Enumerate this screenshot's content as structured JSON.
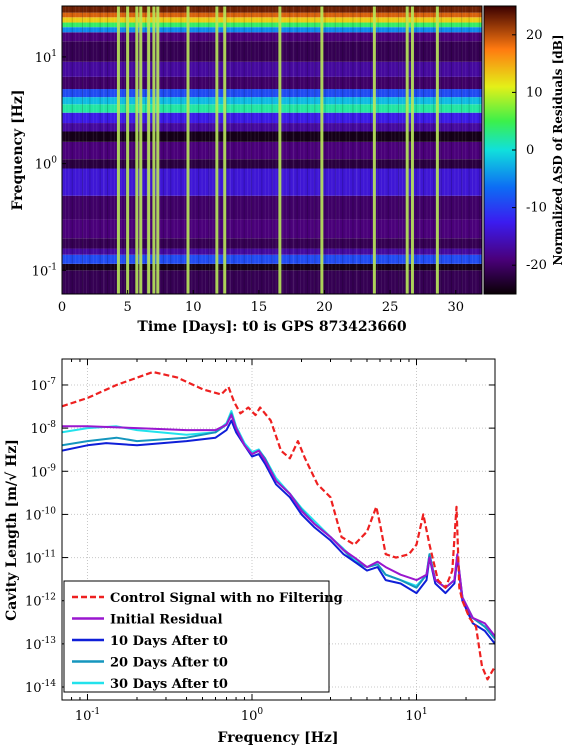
{
  "chart_data": [
    {
      "type": "heatmap",
      "title": "",
      "xlabel": "Time [Days]: t0 is GPS 873423660",
      "ylabel": "Frequency [Hz]",
      "xlim": [
        0,
        32
      ],
      "ylim": [
        0.06,
        30
      ],
      "yscale": "log",
      "x_ticks": [
        "0",
        "5",
        "10",
        "15",
        "20",
        "25",
        "30"
      ],
      "x_tick_values": [
        0,
        5,
        10,
        15,
        20,
        25,
        30
      ],
      "y_ticks": [
        {
          "base": "10",
          "exp": "-1",
          "value": 0.1
        },
        {
          "base": "10",
          "exp": "0",
          "value": 1
        },
        {
          "base": "10",
          "exp": "1",
          "value": 10
        }
      ],
      "colorbar": {
        "label": "Normalized ASD of Residuals [dB]",
        "range": [
          -25,
          25
        ],
        "ticks": [
          "20",
          "10",
          "0",
          "-10",
          "-20"
        ],
        "tick_values": [
          20,
          10,
          0,
          -10,
          -20
        ]
      },
      "frequency_bands": [
        {
          "f_low": 0.06,
          "f_high": 0.1,
          "level_db": -21
        },
        {
          "f_low": 0.1,
          "f_high": 0.115,
          "level_db": -24
        },
        {
          "f_low": 0.115,
          "f_high": 0.14,
          "level_db": -9
        },
        {
          "f_low": 0.14,
          "f_high": 0.16,
          "level_db": -17
        },
        {
          "f_low": 0.16,
          "f_high": 0.2,
          "level_db": -21
        },
        {
          "f_low": 0.2,
          "f_high": 0.3,
          "level_db": -19
        },
        {
          "f_low": 0.3,
          "f_high": 0.5,
          "level_db": -20
        },
        {
          "f_low": 0.5,
          "f_high": 0.9,
          "level_db": -14
        },
        {
          "f_low": 0.9,
          "f_high": 1.1,
          "level_db": -22
        },
        {
          "f_low": 1.1,
          "f_high": 1.6,
          "level_db": -19
        },
        {
          "f_low": 1.6,
          "f_high": 2.0,
          "level_db": -24
        },
        {
          "f_low": 2.0,
          "f_high": 2.4,
          "level_db": -17
        },
        {
          "f_low": 2.4,
          "f_high": 3.0,
          "level_db": -13
        },
        {
          "f_low": 3.0,
          "f_high": 3.6,
          "level_db": 2
        },
        {
          "f_low": 3.6,
          "f_high": 4.2,
          "level_db": -2
        },
        {
          "f_low": 4.2,
          "f_high": 5.0,
          "level_db": -9
        },
        {
          "f_low": 5.0,
          "f_high": 6.5,
          "level_db": -20
        },
        {
          "f_low": 6.5,
          "f_high": 9.0,
          "level_db": -17
        },
        {
          "f_low": 9.0,
          "f_high": 14.0,
          "level_db": -21
        },
        {
          "f_low": 14.0,
          "f_high": 17.0,
          "level_db": -19
        },
        {
          "f_low": 17.0,
          "f_high": 19.0,
          "level_db": -5
        },
        {
          "f_low": 19.0,
          "f_high": 21.0,
          "level_db": 4
        },
        {
          "f_low": 21.0,
          "f_high": 23.5,
          "level_db": 13
        },
        {
          "f_low": 23.5,
          "f_high": 26.0,
          "level_db": 19
        },
        {
          "f_low": 26.0,
          "f_high": 30.0,
          "level_db": 23
        }
      ],
      "time_stripes_days": [
        4.3,
        5.0,
        5.7,
        6.0,
        6.6,
        7.0,
        7.3,
        9.6,
        11.8,
        12.4,
        16.6,
        19.8,
        23.8,
        26.3,
        26.7,
        28.6
      ]
    },
    {
      "type": "line",
      "title": "",
      "xlabel": "Frequency [Hz]",
      "ylabel": "Cavity Length [m/√ Hz]",
      "xscale": "log",
      "yscale": "log",
      "xlim": [
        0.07,
        30
      ],
      "ylim": [
        5e-15,
        4e-07
      ],
      "x_ticks": [
        {
          "base": "10",
          "exp": "-1",
          "value": 0.1
        },
        {
          "base": "10",
          "exp": "0",
          "value": 1
        },
        {
          "base": "10",
          "exp": "1",
          "value": 10
        }
      ],
      "y_ticks": [
        {
          "base": "10",
          "exp": "-14",
          "value": 1e-14
        },
        {
          "base": "10",
          "exp": "-13",
          "value": 1e-13
        },
        {
          "base": "10",
          "exp": "-12",
          "value": 1e-12
        },
        {
          "base": "10",
          "exp": "-11",
          "value": 1e-11
        },
        {
          "base": "10",
          "exp": "-10",
          "value": 1e-10
        },
        {
          "base": "10",
          "exp": "-9",
          "value": 1e-09
        },
        {
          "base": "10",
          "exp": "-8",
          "value": 1e-08
        },
        {
          "base": "10",
          "exp": "-7",
          "value": 1e-07
        }
      ],
      "grid": true,
      "legend_position": "bottom-left",
      "series": [
        {
          "name": "Control Signal with no Filtering",
          "color": "#ee2020",
          "dash": "dashed",
          "x": [
            0.07,
            0.1,
            0.15,
            0.25,
            0.35,
            0.5,
            0.65,
            0.72,
            0.78,
            0.85,
            0.95,
            1.05,
            1.12,
            1.3,
            1.5,
            1.7,
            1.9,
            2.1,
            2.5,
            3.0,
            3.5,
            4.2,
            5.0,
            5.7,
            6.0,
            6.5,
            7.5,
            9.0,
            10.0,
            11.0,
            12.0,
            13.5,
            15.0,
            16.5,
            17.5,
            18.2,
            19.0,
            21.0,
            23.0,
            25.0,
            27.0,
            30.0
          ],
          "y": [
            3.2e-08,
            5e-08,
            1e-07,
            2e-07,
            1.5e-07,
            8e-08,
            6e-08,
            9e-08,
            4e-08,
            2.2e-08,
            3e-08,
            2e-08,
            3e-08,
            1.5e-08,
            3e-09,
            2e-09,
            5e-09,
            2e-09,
            5e-10,
            2.5e-10,
            3e-11,
            2e-11,
            4e-11,
            1.5e-10,
            6e-11,
            1.2e-11,
            1e-11,
            1.2e-11,
            2e-11,
            1e-10,
            2e-11,
            3e-12,
            2e-12,
            5e-12,
            1.5e-10,
            2e-12,
            1e-12,
            4e-13,
            2.5e-13,
            3e-14,
            1.5e-14,
            3e-14
          ]
        },
        {
          "name": "Initial Residual",
          "color": "#9a17cf",
          "x": [
            0.07,
            0.1,
            0.2,
            0.4,
            0.6,
            0.7,
            0.75,
            0.8,
            0.9,
            1.0,
            1.1,
            1.2,
            1.4,
            1.7,
            2.0,
            2.4,
            3.0,
            3.6,
            4.2,
            5.0,
            5.8,
            6.5,
            8.0,
            10.0,
            11.5,
            12.0,
            13.0,
            15.0,
            17.0,
            17.7,
            19.0,
            22.0,
            26.0,
            30.0
          ],
          "y": [
            1.1e-08,
            1.1e-08,
            1e-08,
            9e-09,
            9e-09,
            1.2e-08,
            2e-08,
            1e-08,
            4e-09,
            2.5e-09,
            3e-09,
            1.8e-09,
            6e-10,
            3e-10,
            1.2e-10,
            6e-11,
            3e-11,
            1.5e-11,
            1e-11,
            6e-12,
            8e-12,
            6e-12,
            4e-12,
            3e-12,
            4e-12,
            1e-11,
            3e-12,
            2e-12,
            3e-12,
            1.2e-11,
            1.2e-12,
            4e-13,
            3e-13,
            1.5e-13
          ]
        },
        {
          "name": "10 Days After t0",
          "color": "#0f1fd8",
          "x": [
            0.07,
            0.1,
            0.13,
            0.2,
            0.4,
            0.6,
            0.7,
            0.75,
            0.8,
            0.9,
            1.0,
            1.1,
            1.2,
            1.4,
            1.7,
            2.0,
            2.4,
            3.0,
            3.6,
            4.2,
            5.0,
            5.8,
            6.5,
            8.0,
            10.0,
            11.5,
            12.0,
            13.0,
            15.0,
            17.0,
            17.7,
            19.0,
            22.0,
            26.0,
            30.0
          ],
          "y": [
            3e-09,
            4e-09,
            4.5e-09,
            4e-09,
            5e-09,
            6e-09,
            9e-09,
            1.5e-08,
            8e-09,
            4e-09,
            2.2e-09,
            2.5e-09,
            1.5e-09,
            5e-10,
            2.5e-10,
            1e-10,
            5e-11,
            2.5e-11,
            1.2e-11,
            8e-12,
            5e-12,
            6e-12,
            3e-12,
            2.5e-12,
            1.5e-12,
            3e-12,
            1e-11,
            2.5e-12,
            1.5e-12,
            2.5e-12,
            1e-11,
            1e-12,
            3e-13,
            2e-13,
            1e-13
          ]
        },
        {
          "name": "20 Days After t0",
          "color": "#1596be",
          "x": [
            0.07,
            0.1,
            0.15,
            0.2,
            0.4,
            0.6,
            0.7,
            0.75,
            0.8,
            0.9,
            1.0,
            1.1,
            1.2,
            1.4,
            1.7,
            2.0,
            2.4,
            3.0,
            3.6,
            4.2,
            5.0,
            5.8,
            6.5,
            8.0,
            10.0,
            11.5,
            12.0,
            13.0,
            15.0,
            17.0,
            17.7,
            19.0,
            22.0,
            26.0,
            30.0
          ],
          "y": [
            4e-09,
            5e-09,
            6e-09,
            5e-09,
            6e-09,
            8e-09,
            1.2e-08,
            2.2e-08,
            1e-08,
            4e-09,
            2.5e-09,
            3e-09,
            2e-09,
            6e-10,
            3e-10,
            1.3e-10,
            6e-11,
            3e-11,
            1.5e-11,
            8e-12,
            6e-12,
            7e-12,
            4e-12,
            3e-12,
            2e-12,
            4e-12,
            1.2e-11,
            3e-12,
            2e-12,
            3e-12,
            1.1e-11,
            1.2e-12,
            4e-13,
            2.5e-13,
            1.3e-13
          ]
        },
        {
          "name": "30 Days After t0",
          "color": "#22e2ec",
          "x": [
            0.07,
            0.1,
            0.15,
            0.2,
            0.4,
            0.6,
            0.7,
            0.75,
            0.8,
            0.9,
            1.0,
            1.1,
            1.2,
            1.4,
            1.7,
            2.0,
            2.4,
            3.0,
            3.6,
            4.2,
            5.0,
            5.8,
            6.5,
            8.0,
            10.0,
            11.5,
            12.0,
            13.0,
            15.0,
            17.0,
            17.7,
            19.0,
            22.0,
            26.0,
            30.0
          ],
          "y": [
            8e-09,
            1e-08,
            1.1e-08,
            9e-09,
            7e-09,
            8e-09,
            1.3e-08,
            2.5e-08,
            1.1e-08,
            4.5e-09,
            2.8e-09,
            3.2e-09,
            2e-09,
            7e-10,
            3e-10,
            1.4e-10,
            7e-11,
            3e-11,
            1.6e-11,
            9e-12,
            6e-12,
            7e-12,
            4e-12,
            3e-12,
            2.2e-12,
            4e-12,
            1.2e-11,
            3e-12,
            2e-12,
            3e-12,
            1.1e-11,
            1.2e-12,
            4e-13,
            2.5e-13,
            1.5e-13
          ]
        }
      ]
    }
  ]
}
